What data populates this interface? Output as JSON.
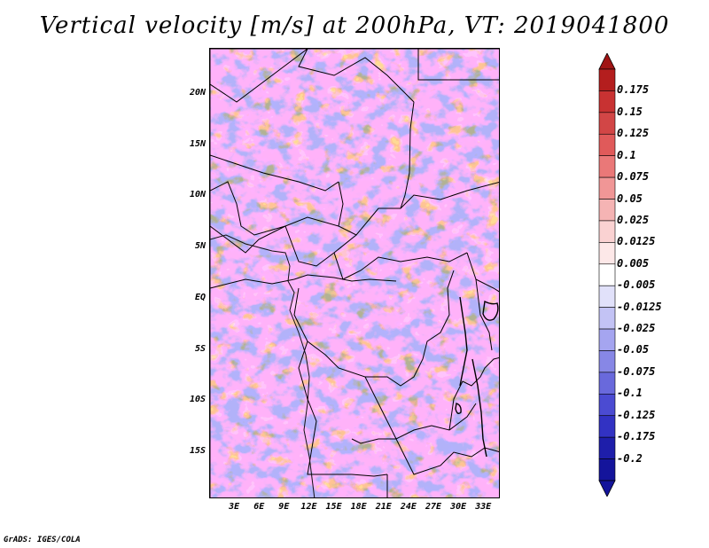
{
  "title": "Vertical velocity [m/s] at 200hPa, VT: 2019041800",
  "credit": "GrADS: IGES/COLA",
  "map": {
    "region": "Central Africa",
    "variable": "Vertical velocity",
    "units": "m/s",
    "level": "200hPa",
    "valid_time": "2019041800",
    "lat_range": [
      -19.5,
      24.5
    ],
    "lon_range": [
      0.0,
      35.0
    ],
    "lat_ticks": [
      {
        "value": 20,
        "label": "20N"
      },
      {
        "value": 15,
        "label": "15N"
      },
      {
        "value": 10,
        "label": "10N"
      },
      {
        "value": 5,
        "label": "5N"
      },
      {
        "value": 0,
        "label": "EQ"
      },
      {
        "value": -5,
        "label": "5S"
      },
      {
        "value": -10,
        "label": "10S"
      },
      {
        "value": -15,
        "label": "15S"
      }
    ],
    "lon_ticks": [
      {
        "value": 3,
        "label": "3E"
      },
      {
        "value": 6,
        "label": "6E"
      },
      {
        "value": 9,
        "label": "9E"
      },
      {
        "value": 12,
        "label": "12E"
      },
      {
        "value": 15,
        "label": "15E"
      },
      {
        "value": 18,
        "label": "18E"
      },
      {
        "value": 21,
        "label": "21E"
      },
      {
        "value": 24,
        "label": "24E"
      },
      {
        "value": 27,
        "label": "27E"
      },
      {
        "value": 30,
        "label": "30E"
      },
      {
        "value": 33,
        "label": "33E"
      }
    ]
  },
  "colorbar": {
    "levels": [
      {
        "label": "0.175",
        "color": "#b41e1e"
      },
      {
        "label": "0.15",
        "color": "#c83232"
      },
      {
        "label": "0.125",
        "color": "#d24646"
      },
      {
        "label": "0.1",
        "color": "#e05a5a"
      },
      {
        "label": "0.075",
        "color": "#ea7878"
      },
      {
        "label": "0.05",
        "color": "#f09696"
      },
      {
        "label": "0.025",
        "color": "#f5b4b4"
      },
      {
        "label": "0.0125",
        "color": "#fad2d2"
      },
      {
        "label": "0.005",
        "color": "#fde8e8"
      },
      {
        "label": "-0.005",
        "color": "#ffffff"
      },
      {
        "label": "-0.0125",
        "color": "#e1e1fa"
      },
      {
        "label": "-0.025",
        "color": "#c3c3f5"
      },
      {
        "label": "-0.05",
        "color": "#a5a5f0"
      },
      {
        "label": "-0.075",
        "color": "#8787e6"
      },
      {
        "label": "-0.1",
        "color": "#6969dc"
      },
      {
        "label": "-0.125",
        "color": "#4b4bd2"
      },
      {
        "label": "-0.175",
        "color": "#3232c3"
      },
      {
        "label": "-0.2",
        "color": "#1e1eaa"
      }
    ],
    "over_color": "#a01414",
    "under_color": "#14149b"
  }
}
